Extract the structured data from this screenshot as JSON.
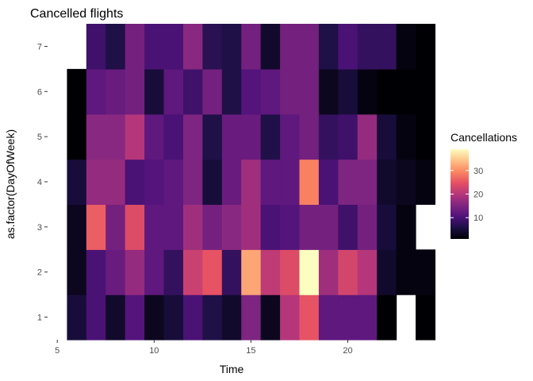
{
  "chart_data": {
    "type": "heatmap",
    "title": "Cancelled flights",
    "xlabel": "Time",
    "ylabel": "as.factor(DayOfWeek)",
    "x_ticks": [
      5,
      10,
      15,
      20
    ],
    "y_categories": [
      "1",
      "2",
      "3",
      "4",
      "5",
      "6",
      "7"
    ],
    "x_range": [
      4.5,
      23.5
    ],
    "legend": {
      "title": "Cancellations",
      "ticks": [
        10,
        20,
        30
      ],
      "range": [
        1,
        39
      ],
      "position": "right",
      "palette": [
        "#000004",
        "#1c1044",
        "#4f127b",
        "#812581",
        "#b5367a",
        "#e55064",
        "#fb8761",
        "#fec287",
        "#fcfdbf"
      ]
    },
    "grid": false,
    "rows": [
      {
        "day": "1",
        "values": [
          null,
          5,
          10,
          4,
          11,
          3,
          5,
          10,
          6,
          4,
          15,
          3,
          20,
          25,
          12,
          12,
          12,
          1,
          null,
          1
        ]
      },
      {
        "day": "2",
        "values": [
          null,
          3,
          10,
          13,
          17,
          12,
          8,
          22,
          25,
          8,
          32,
          21,
          24,
          39,
          18,
          23,
          20,
          4,
          2,
          2
        ]
      },
      {
        "day": "3",
        "values": [
          null,
          3,
          26,
          14,
          24,
          12,
          12,
          18,
          14,
          16,
          18,
          10,
          11,
          14,
          14,
          9,
          14,
          5,
          2,
          null
        ]
      },
      {
        "day": "4",
        "values": [
          null,
          5,
          17,
          17,
          10,
          11,
          12,
          15,
          5,
          13,
          18,
          12,
          12,
          29,
          10,
          15,
          15,
          4,
          3,
          2
        ]
      },
      {
        "day": "5",
        "values": [
          null,
          1,
          16,
          16,
          20,
          12,
          10,
          15,
          6,
          13,
          13,
          6,
          12,
          14,
          8,
          9,
          17,
          5,
          2,
          1
        ]
      },
      {
        "day": "6",
        "values": [
          null,
          1,
          12,
          13,
          14,
          5,
          12,
          9,
          14,
          6,
          11,
          12,
          14,
          14,
          3,
          5,
          2,
          1,
          1,
          1
        ]
      },
      {
        "day": "7",
        "values": [
          null,
          null,
          9,
          6,
          14,
          10,
          10,
          16,
          7,
          6,
          14,
          4,
          14,
          14,
          6,
          10,
          8,
          8,
          2,
          1
        ]
      }
    ]
  }
}
